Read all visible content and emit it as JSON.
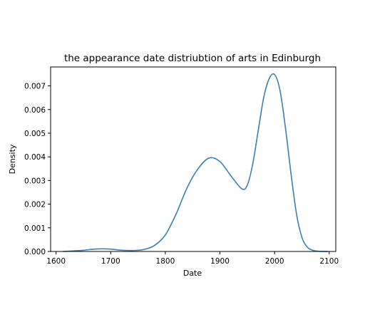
{
  "chart_data": {
    "type": "line",
    "title": "the appearance date distriubtion of arts in Edinburgh",
    "xlabel": "Date",
    "ylabel": "Density",
    "xlim": [
      1590,
      2112
    ],
    "ylim": [
      0,
      0.0078
    ],
    "x_ticks": [
      1600,
      1700,
      1800,
      1900,
      2000,
      2100
    ],
    "x_tick_labels": [
      "1600",
      "1700",
      "1800",
      "1900",
      "2000",
      "2100"
    ],
    "y_ticks": [
      0,
      0.001,
      0.002,
      0.003,
      0.004,
      0.005,
      0.006,
      0.007
    ],
    "y_tick_labels": [
      "0.000",
      "0.001",
      "0.002",
      "0.003",
      "0.004",
      "0.005",
      "0.006",
      "0.007"
    ],
    "grid": false,
    "legend": false,
    "series": [
      {
        "color": "#3a7fb5",
        "x": [
          1612,
          1630,
          1650,
          1670,
          1685,
          1700,
          1720,
          1740,
          1760,
          1780,
          1800,
          1820,
          1840,
          1860,
          1880,
          1900,
          1920,
          1940,
          1950,
          1960,
          1970,
          1980,
          1990,
          2000,
          2010,
          2020,
          2030,
          2040,
          2050,
          2060,
          2070,
          2080,
          2098
        ],
        "y": [
          0.0,
          2e-05,
          5e-05,
          0.0001,
          0.00011,
          0.0001,
          5e-05,
          4e-05,
          8e-05,
          0.00025,
          0.0007,
          0.0016,
          0.0027,
          0.0035,
          0.00395,
          0.0038,
          0.0032,
          0.00265,
          0.0028,
          0.0037,
          0.0051,
          0.0065,
          0.0073,
          0.00748,
          0.0068,
          0.0052,
          0.0033,
          0.0016,
          0.0006,
          0.00018,
          5e-05,
          1e-05,
          0.0
        ]
      }
    ]
  }
}
